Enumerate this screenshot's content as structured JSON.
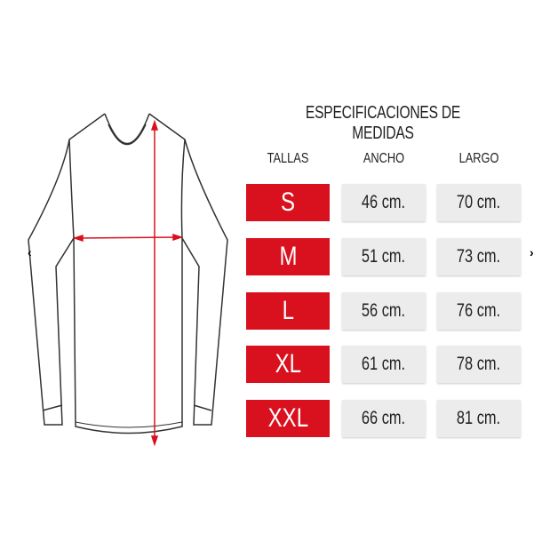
{
  "title": "ESPECIFICACIONES DE MEDIDAS",
  "headers": {
    "size": "TALLAS",
    "width": "ANCHO",
    "length": "LARGO"
  },
  "rows": [
    {
      "size": "S",
      "width": "46 cm.",
      "length": "70 cm."
    },
    {
      "size": "M",
      "width": "51 cm.",
      "length": "73 cm."
    },
    {
      "size": "L",
      "width": "56 cm.",
      "length": "76 cm."
    },
    {
      "size": "XL",
      "width": "61 cm.",
      "length": "78 cm."
    },
    {
      "size": "XXL",
      "width": "66 cm.",
      "length": "81 cm."
    }
  ],
  "nav": {
    "prev": "‹",
    "next": "›"
  },
  "colors": {
    "accent": "#d9101e",
    "cell": "#ececec"
  }
}
